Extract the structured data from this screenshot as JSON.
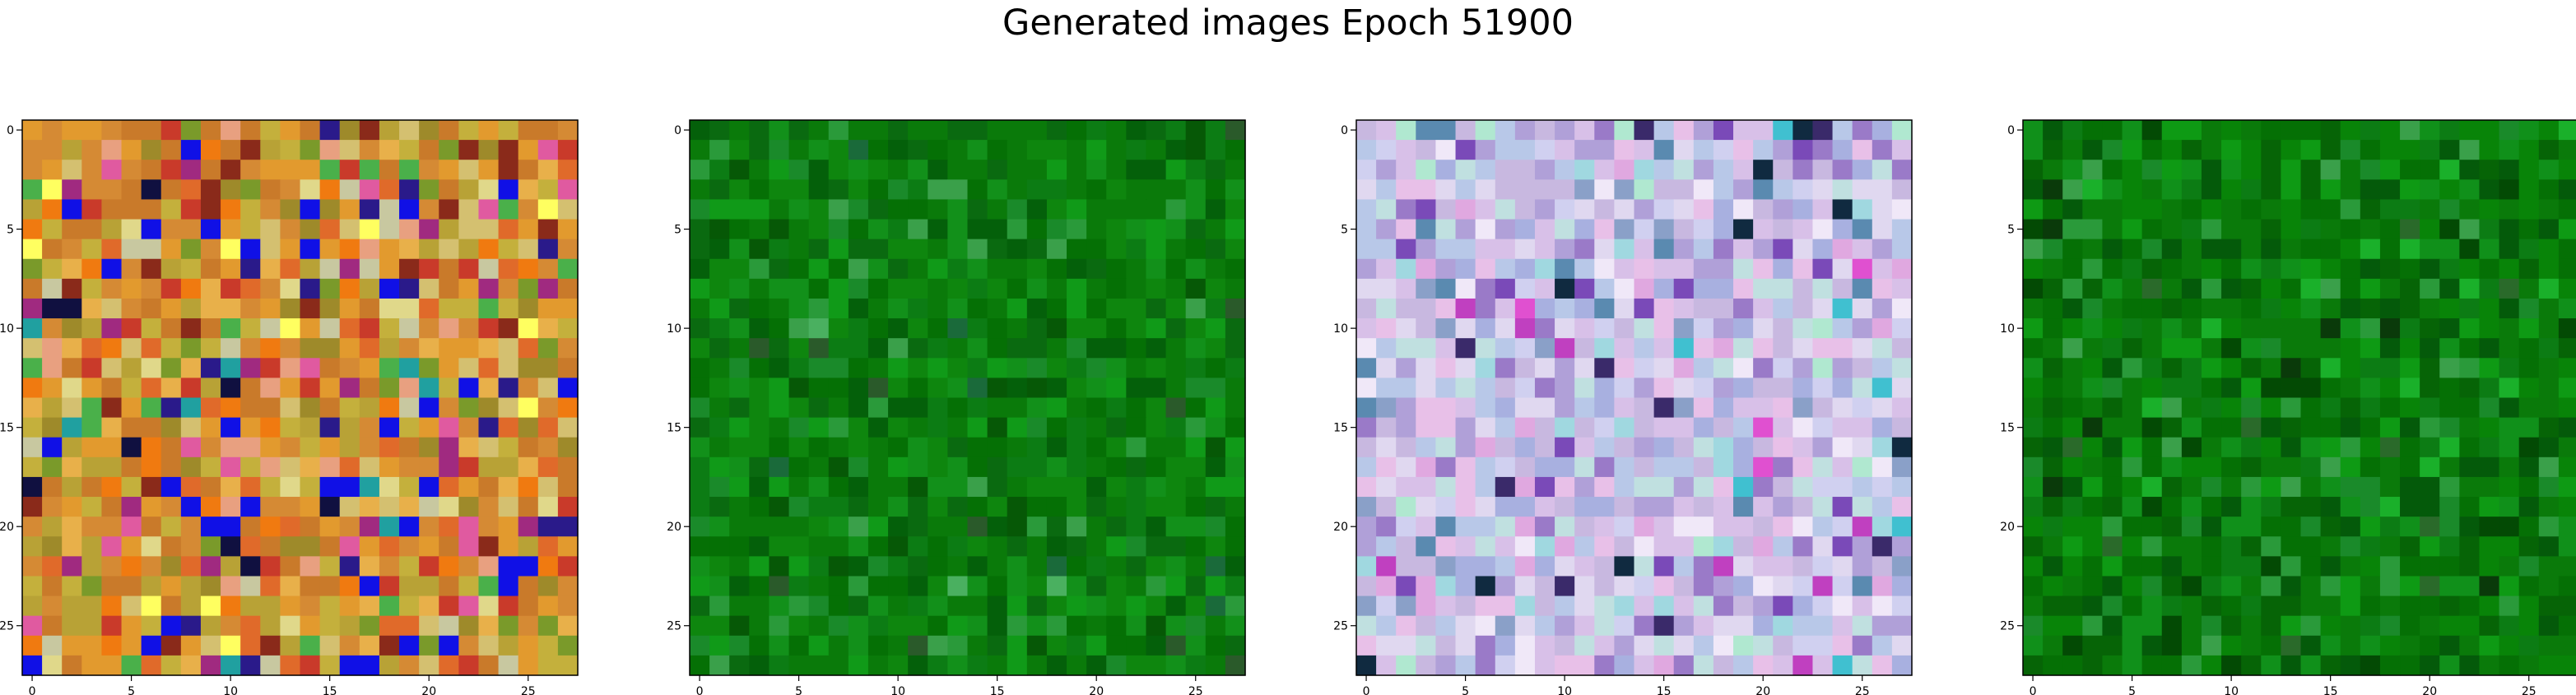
{
  "title": "Generated images Epoch 51900",
  "chart_data": [
    {
      "type": "heatmap",
      "grid": [
        28,
        28
      ],
      "xticks": [
        0,
        5,
        10,
        15,
        20,
        25
      ],
      "yticks": [
        0,
        5,
        10,
        15,
        20,
        25
      ],
      "palette_name": "warm-multicolor",
      "palette": [
        "#d58a34",
        "#c97a2a",
        "#e29a2e",
        "#b8a236",
        "#c4b03c",
        "#e06a2a",
        "#c93a2a",
        "#9e8a2a",
        "#e8b04a",
        "#d4c070",
        "#1010e6",
        "#2a1a8a",
        "#e0d88a",
        "#8a2a1a",
        "#e8a080",
        "#4ab04a",
        "#7a9a2a",
        "#f07a10",
        "#ffff60",
        "#e05aa0",
        "#20a0a0",
        "#a02a80",
        "#101040",
        "#c8c8a0"
      ],
      "weights": [
        10,
        9,
        9,
        8,
        7,
        6,
        5,
        6,
        5,
        4,
        4,
        2,
        3,
        3,
        3,
        2,
        3,
        3,
        1,
        2,
        1,
        2,
        1,
        2
      ]
    },
    {
      "type": "heatmap",
      "grid": [
        28,
        28
      ],
      "xticks": [
        0,
        5,
        10,
        15,
        20,
        25
      ],
      "yticks": [
        0,
        5,
        10,
        15,
        20,
        25
      ],
      "palette_name": "green",
      "palette": [
        "#0a7a0a",
        "#0e860e",
        "#057005",
        "#12901a",
        "#0a6a10",
        "#04600a",
        "#109a18",
        "#1a8a2a",
        "#0c7c14",
        "#2a9a3a",
        "#065806",
        "#3aa04a",
        "#4ab060",
        "#1a6a3a",
        "#2a5a2a"
      ],
      "weights": [
        14,
        12,
        11,
        9,
        8,
        6,
        6,
        4,
        6,
        3,
        3,
        2,
        1,
        1,
        1
      ]
    },
    {
      "type": "heatmap",
      "grid": [
        28,
        28
      ],
      "xticks": [
        0,
        5,
        10,
        15,
        20,
        25
      ],
      "yticks": [
        0,
        5,
        10,
        15,
        20,
        25
      ],
      "palette_name": "pastel",
      "palette": [
        "#c8b8e0",
        "#d8c0e8",
        "#b8c8e8",
        "#e0d8f0",
        "#b0a0d8",
        "#c0e0e0",
        "#a8b0e0",
        "#e8c0e8",
        "#9a7ac8",
        "#d0d0f0",
        "#f0e8f8",
        "#a0d8e0",
        "#8aa0c8",
        "#e0a8e0",
        "#7a4ab8",
        "#3a2a6a",
        "#40c0d0",
        "#c040c0",
        "#102a40",
        "#5a8ab0",
        "#b0e8d0",
        "#e050d0"
      ],
      "weights": [
        11,
        10,
        10,
        9,
        7,
        6,
        6,
        6,
        4,
        6,
        4,
        3,
        3,
        3,
        2,
        1,
        1,
        1,
        1,
        2,
        2,
        1
      ]
    },
    {
      "type": "heatmap",
      "grid": [
        28,
        28
      ],
      "xticks": [
        0,
        5,
        10,
        15,
        20,
        25
      ],
      "yticks": [
        0,
        5,
        10,
        15,
        20,
        25
      ],
      "palette_name": "green",
      "palette": [
        "#0a7a0a",
        "#088408",
        "#057005",
        "#10901a",
        "#066406",
        "#045a0a",
        "#0e9a14",
        "#1a8a2a",
        "#0c7c14",
        "#2a9a3a",
        "#034a04",
        "#3aa04a",
        "#1ab02a",
        "#0a3a0a",
        "#2a6a2a"
      ],
      "weights": [
        14,
        12,
        11,
        9,
        8,
        6,
        5,
        4,
        6,
        3,
        3,
        2,
        2,
        1,
        1
      ]
    }
  ]
}
